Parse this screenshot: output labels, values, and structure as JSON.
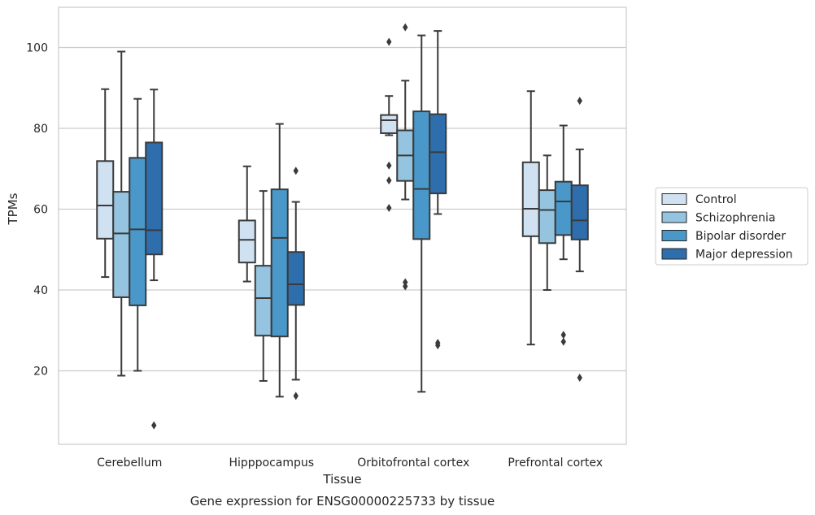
{
  "caption": "Gene expression for ENSG00000225733 by tissue",
  "chart_data": {
    "type": "box",
    "title": "",
    "xlabel": "Tissue",
    "ylabel": "TPMs",
    "ylim": [
      1.5,
      110
    ],
    "yticks": [
      20,
      40,
      60,
      80,
      100
    ],
    "grid": "horizontal",
    "legend_position": "right",
    "categories": [
      "Cerebellum",
      "Hipppocampus",
      "Orbitofrontal cortex",
      "Prefrontal cortex"
    ],
    "series": [
      {
        "name": "Control",
        "color": "#d0e1f2",
        "boxes": [
          {
            "whislo": 43.2,
            "q1": 52.7,
            "med": 60.9,
            "q3": 71.9,
            "whishi": 89.7,
            "fliers": []
          },
          {
            "whislo": 42.1,
            "q1": 46.8,
            "med": 52.4,
            "q3": 57.2,
            "whishi": 70.6,
            "fliers": []
          },
          {
            "whislo": 78.3,
            "q1": 78.8,
            "med": 82.0,
            "q3": 83.3,
            "whishi": 88.0,
            "fliers": [
              101.4,
              70.8,
              67.1,
              60.3
            ]
          },
          {
            "whislo": 26.5,
            "q1": 53.3,
            "med": 60.1,
            "q3": 71.6,
            "whishi": 89.2,
            "fliers": []
          }
        ]
      },
      {
        "name": "Schizophrenia",
        "color": "#94c4df",
        "boxes": [
          {
            "whislo": 18.8,
            "q1": 38.2,
            "med": 54.0,
            "q3": 64.3,
            "whishi": 99.0,
            "fliers": []
          },
          {
            "whislo": 17.5,
            "q1": 28.7,
            "med": 38.0,
            "q3": 46.0,
            "whishi": 64.5,
            "fliers": []
          },
          {
            "whislo": 62.4,
            "q1": 67.0,
            "med": 73.3,
            "q3": 79.5,
            "whishi": 91.8,
            "fliers": [
              105.0,
              41.9,
              40.9
            ]
          },
          {
            "whislo": 40.0,
            "q1": 51.6,
            "med": 59.8,
            "q3": 64.7,
            "whishi": 73.3,
            "fliers": []
          }
        ]
      },
      {
        "name": "Bipolar disorder",
        "color": "#4a98c9",
        "boxes": [
          {
            "whislo": 20.0,
            "q1": 36.2,
            "med": 55.0,
            "q3": 72.7,
            "whishi": 87.3,
            "fliers": []
          },
          {
            "whislo": 13.6,
            "q1": 28.5,
            "med": 52.9,
            "q3": 64.9,
            "whishi": 81.1,
            "fliers": []
          },
          {
            "whislo": 14.8,
            "q1": 52.6,
            "med": 65.0,
            "q3": 84.2,
            "whishi": 103.0,
            "fliers": []
          },
          {
            "whislo": 47.6,
            "q1": 53.6,
            "med": 61.9,
            "q3": 66.8,
            "whishi": 80.7,
            "fliers": [
              28.9,
              27.2
            ]
          }
        ]
      },
      {
        "name": "Major depression",
        "color": "#2e6ead",
        "boxes": [
          {
            "whislo": 42.4,
            "q1": 48.8,
            "med": 54.8,
            "q3": 76.5,
            "whishi": 89.6,
            "fliers": [
              6.5
            ]
          },
          {
            "whislo": 17.8,
            "q1": 36.3,
            "med": 41.4,
            "q3": 49.4,
            "whishi": 61.8,
            "fliers": [
              69.5,
              13.8
            ]
          },
          {
            "whislo": 58.8,
            "q1": 63.9,
            "med": 74.1,
            "q3": 83.5,
            "whishi": 104.1,
            "fliers": [
              26.9,
              26.3
            ]
          },
          {
            "whislo": 44.6,
            "q1": 52.5,
            "med": 57.2,
            "q3": 65.9,
            "whishi": 74.8,
            "fliers": [
              86.8,
              18.3
            ]
          }
        ]
      }
    ]
  }
}
